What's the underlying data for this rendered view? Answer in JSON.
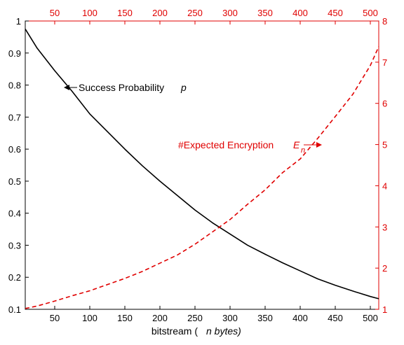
{
  "chart_data": {
    "type": "line",
    "xlabel": "bitstream (",
    "xlabel_italic": "n bytes)",
    "xlim": [
      8,
      512
    ],
    "ylim_left": [
      0.1,
      1.0
    ],
    "ylim_right": [
      1,
      8
    ],
    "x_ticks": [
      50,
      100,
      150,
      200,
      250,
      300,
      350,
      400,
      450,
      500
    ],
    "y_left_ticks": [
      "0.1",
      "0.2",
      "0.3",
      "0.4",
      "0.5",
      "0.6",
      "0.7",
      "0.8",
      "0.9",
      "1"
    ],
    "y_right_ticks": [
      "1",
      "2",
      "3",
      "4",
      "5",
      "6",
      "7",
      "8"
    ],
    "grid": false,
    "colors": {
      "left_axis": "#000000",
      "right_axis": "#e00000"
    },
    "series": [
      {
        "name": "Success Probability",
        "symbol": "p",
        "axis": "left",
        "color": "#000000",
        "style": "solid",
        "x": [
          8,
          25,
          50,
          75,
          100,
          125,
          150,
          175,
          200,
          225,
          250,
          275,
          300,
          325,
          350,
          375,
          400,
          425,
          450,
          475,
          500,
          512
        ],
        "values": [
          0.975,
          0.915,
          0.845,
          0.78,
          0.71,
          0.655,
          0.6,
          0.548,
          0.5,
          0.455,
          0.41,
          0.37,
          0.335,
          0.3,
          0.272,
          0.245,
          0.22,
          0.195,
          0.175,
          0.157,
          0.14,
          0.133
        ]
      },
      {
        "name": "#Expected Encryption",
        "symbol": "E",
        "subscript": "n",
        "axis": "right",
        "color": "#e00000",
        "style": "dashed",
        "x": [
          8,
          25,
          50,
          75,
          100,
          125,
          150,
          175,
          200,
          225,
          250,
          275,
          300,
          325,
          350,
          375,
          400,
          425,
          450,
          475,
          500,
          512
        ],
        "values": [
          1.02,
          1.08,
          1.2,
          1.33,
          1.45,
          1.6,
          1.75,
          1.92,
          2.12,
          2.32,
          2.58,
          2.88,
          3.18,
          3.55,
          3.9,
          4.32,
          4.65,
          5.15,
          5.68,
          6.22,
          6.92,
          7.38
        ]
      }
    ]
  }
}
